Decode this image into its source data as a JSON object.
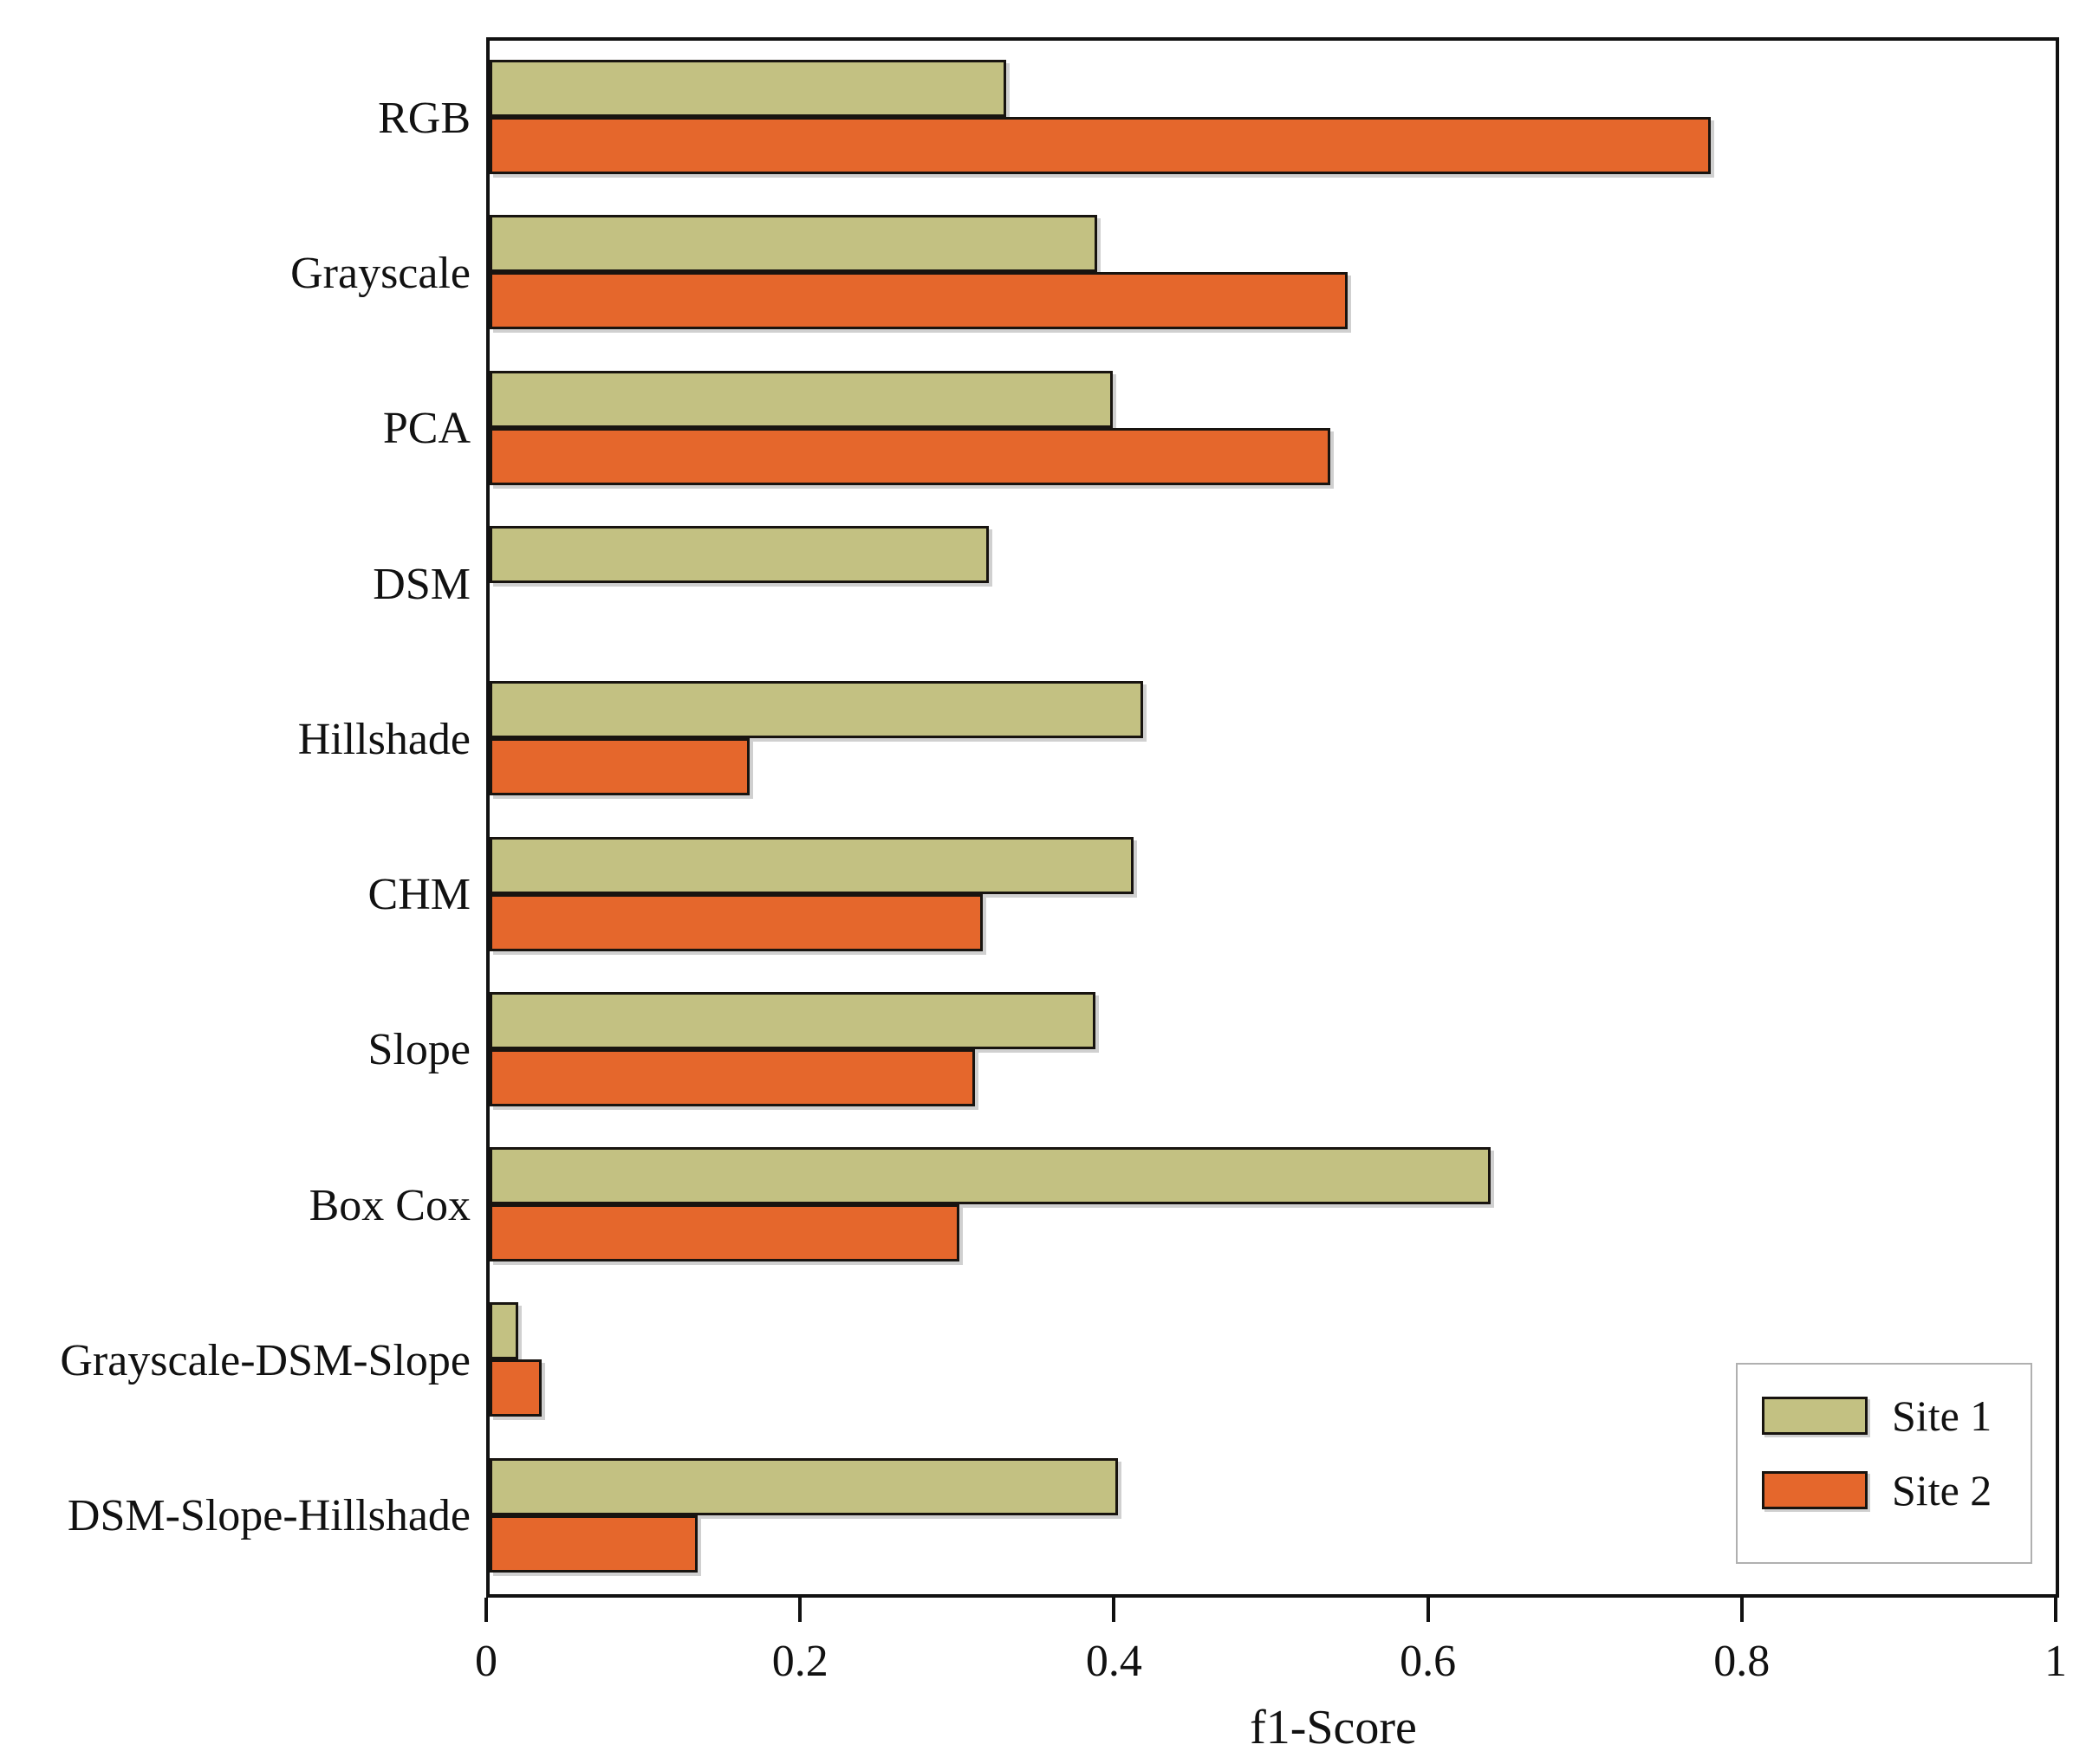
{
  "chart_data": {
    "type": "bar",
    "orientation": "horizontal",
    "title": "",
    "xlabel": "f1-Score",
    "ylabel": "",
    "xlim": [
      0,
      1
    ],
    "xticks": [
      0,
      0.2,
      0.4,
      0.6,
      0.8,
      1
    ],
    "xtick_labels": [
      "0",
      "0.2",
      "0.4",
      "0.6",
      "0.8",
      "1"
    ],
    "grid": "off",
    "legend_position": "lower right",
    "categories": [
      "RGB",
      "Grayscale",
      "PCA",
      "DSM",
      "Hillshade",
      "CHM",
      "Slope",
      "Box Cox",
      "Grayscale-DSM-Slope",
      "DSM-Slope-Hillshade"
    ],
    "series": [
      {
        "name": "Site 1",
        "color": "#c3c182",
        "values": [
          0.33,
          0.388,
          0.398,
          0.319,
          0.417,
          0.411,
          0.387,
          0.639,
          0.018,
          0.401
        ]
      },
      {
        "name": "Site 2",
        "color": "#e5672c",
        "values": [
          0.78,
          0.548,
          0.537,
          0,
          0.166,
          0.315,
          0.31,
          0.3,
          0.033,
          0.133
        ]
      }
    ]
  },
  "style": {
    "bar_border_color": "#181410",
    "frame_color": "#111111",
    "legend_border_color": "#b0b0b0"
  }
}
